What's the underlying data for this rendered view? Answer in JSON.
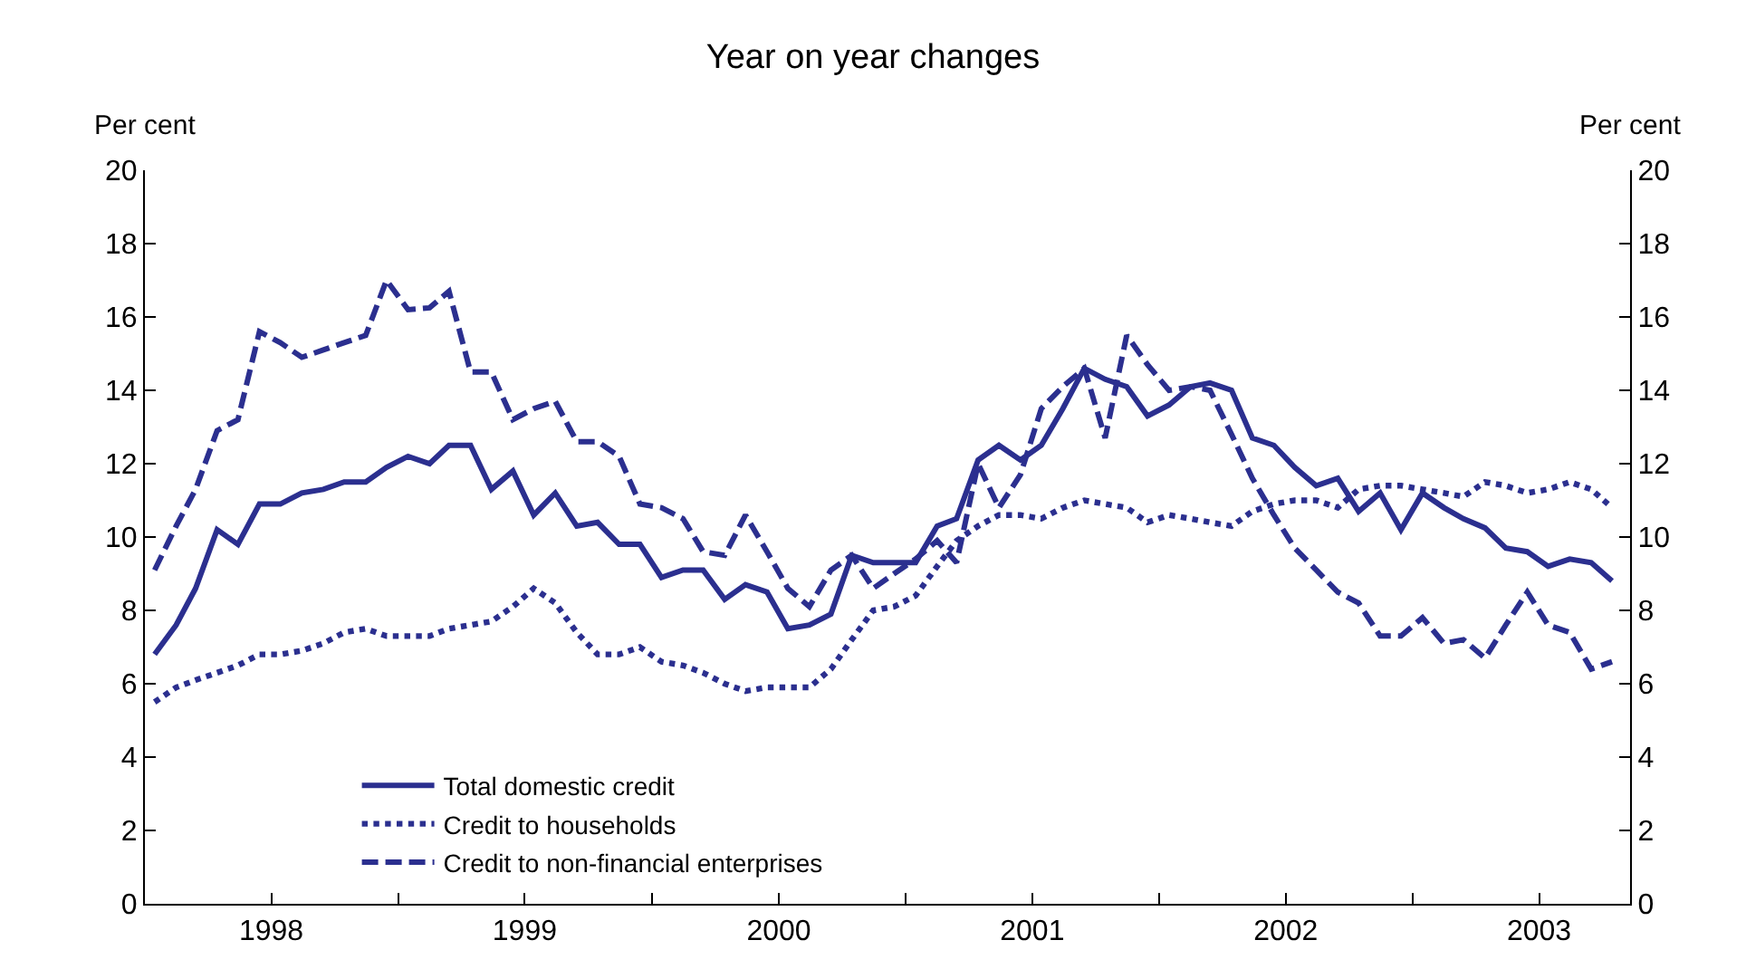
{
  "chart_data": {
    "type": "line",
    "title": "Year on year changes",
    "ylabel": "Per cent",
    "y2label": "Per cent",
    "x": [
      "1998-01-15",
      "1998-02-15",
      "1998-03-15",
      "1998-04-15",
      "1998-05-15",
      "1998-06-15",
      "1998-07-15",
      "1998-08-15",
      "1998-09-15",
      "1998-10-15",
      "1998-11-15",
      "1998-12-15",
      "1999-01-15",
      "1999-02-15",
      "1999-03-15",
      "1999-04-15",
      "1999-05-15",
      "1999-06-15",
      "1999-07-15",
      "1999-08-15",
      "1999-09-15",
      "1999-10-15",
      "1999-11-15",
      "1999-12-15",
      "2000-01-15",
      "2000-02-15",
      "2000-03-15",
      "2000-04-15",
      "2000-05-15",
      "2000-06-15",
      "2000-07-15",
      "2000-08-15",
      "2000-09-15",
      "2000-10-15",
      "2000-11-15",
      "2000-12-15",
      "2001-01-15",
      "2001-02-15",
      "2001-03-15",
      "2001-04-15",
      "2001-05-15",
      "2001-06-15",
      "2001-07-15",
      "2001-08-15",
      "2001-09-15",
      "2001-10-15",
      "2001-11-15",
      "2001-12-15",
      "2002-01-15",
      "2002-02-15",
      "2002-03-15",
      "2002-04-15",
      "2002-05-15",
      "2002-06-15",
      "2002-07-15",
      "2002-08-15",
      "2002-09-15",
      "2002-10-15",
      "2002-11-15",
      "2002-12-15",
      "2003-01-15",
      "2003-02-15",
      "2003-03-15",
      "2003-04-15",
      "2003-05-15",
      "2003-06-15",
      "2003-07-15",
      "2003-08-15",
      "2003-09-15",
      "2003-10-15"
    ],
    "series": [
      {
        "name": "Total domestic credit",
        "color": "#2b2f8f",
        "line_style": "solid",
        "values": [
          6.8,
          7.6,
          8.6,
          10.2,
          9.8,
          10.9,
          10.9,
          11.2,
          11.3,
          11.5,
          11.5,
          11.9,
          12.2,
          12.0,
          12.5,
          12.5,
          11.3,
          11.8,
          10.6,
          11.2,
          10.3,
          10.4,
          9.8,
          9.8,
          8.9,
          9.1,
          9.1,
          8.3,
          8.7,
          8.5,
          7.5,
          7.6,
          7.9,
          9.5,
          9.3,
          9.3,
          9.3,
          10.3,
          10.5,
          12.1,
          12.5,
          12.1,
          12.5,
          13.5,
          14.6,
          14.3,
          14.1,
          13.3,
          13.6,
          14.1,
          14.2,
          14.0,
          12.7,
          12.5,
          11.9,
          11.4,
          11.6,
          10.7,
          11.2,
          10.2,
          11.2,
          10.8,
          10.5,
          10.25,
          9.7,
          9.6,
          9.2,
          9.4,
          9.3,
          8.8
        ]
      },
      {
        "name": "Credit to households",
        "color": "#2b2f8f",
        "line_style": "dotted",
        "values": [
          5.5,
          5.9,
          6.1,
          6.3,
          6.5,
          6.8,
          6.8,
          6.9,
          7.1,
          7.4,
          7.5,
          7.3,
          7.3,
          7.3,
          7.5,
          7.6,
          7.7,
          8.1,
          8.6,
          8.2,
          7.4,
          6.8,
          6.8,
          7.0,
          6.6,
          6.5,
          6.3,
          6.0,
          5.8,
          5.9,
          5.9,
          5.9,
          6.4,
          7.2,
          8.0,
          8.1,
          8.4,
          9.2,
          9.9,
          10.3,
          10.6,
          10.6,
          10.5,
          10.8,
          11.0,
          10.9,
          10.8,
          10.4,
          10.6,
          10.5,
          10.4,
          10.3,
          10.7,
          10.9,
          11.0,
          11.0,
          10.8,
          11.3,
          11.4,
          11.4,
          11.3,
          11.2,
          11.1,
          11.5,
          11.4,
          11.2,
          11.3,
          11.5,
          11.3,
          10.8
        ]
      },
      {
        "name": "Credit to non-financial enterprises",
        "color": "#2b2f8f",
        "line_style": "dashed",
        "values": [
          9.1,
          10.3,
          11.3,
          12.9,
          13.2,
          15.6,
          15.3,
          14.9,
          15.1,
          15.3,
          15.5,
          17.0,
          16.2,
          16.25,
          16.7,
          14.5,
          14.5,
          13.2,
          13.5,
          13.7,
          12.6,
          12.6,
          12.2,
          10.9,
          10.8,
          10.5,
          9.6,
          9.5,
          10.6,
          9.6,
          8.6,
          8.1,
          9.1,
          9.5,
          8.6,
          9.0,
          9.4,
          9.9,
          9.3,
          12.0,
          10.8,
          11.7,
          13.5,
          14.1,
          14.6,
          12.7,
          15.5,
          14.7,
          14.0,
          14.1,
          14.0,
          12.8,
          11.6,
          10.6,
          9.7,
          9.1,
          8.5,
          8.2,
          7.3,
          7.3,
          7.8,
          7.1,
          7.2,
          6.7,
          7.6,
          8.5,
          7.6,
          7.4,
          6.4,
          6.6
        ]
      }
    ],
    "xlim": [
      "1998-01-01",
      "2003-11-10"
    ],
    "xticks": [
      {
        "value": "1998-01-01",
        "label": null
      },
      {
        "value": "1998-07-02",
        "label": "1998"
      },
      {
        "value": "1999-01-01",
        "label": null
      },
      {
        "value": "1999-07-02",
        "label": "1999"
      },
      {
        "value": "2000-01-01",
        "label": null
      },
      {
        "value": "2000-07-02",
        "label": "2000"
      },
      {
        "value": "2001-01-01",
        "label": null
      },
      {
        "value": "2001-07-02",
        "label": "2001"
      },
      {
        "value": "2002-01-01",
        "label": null
      },
      {
        "value": "2002-07-02",
        "label": "2002"
      },
      {
        "value": "2003-01-01",
        "label": null
      },
      {
        "value": "2003-07-02",
        "label": "2003"
      }
    ],
    "ylim": [
      0,
      20
    ],
    "yticks": [
      0,
      2,
      4,
      6,
      8,
      10,
      12,
      14,
      16,
      18,
      20
    ],
    "y2lim": [
      0,
      20
    ],
    "y2ticks": [
      0,
      2,
      4,
      6,
      8,
      10,
      12,
      14,
      16,
      18,
      20
    ],
    "legend": "bottom left",
    "marker": "none"
  }
}
